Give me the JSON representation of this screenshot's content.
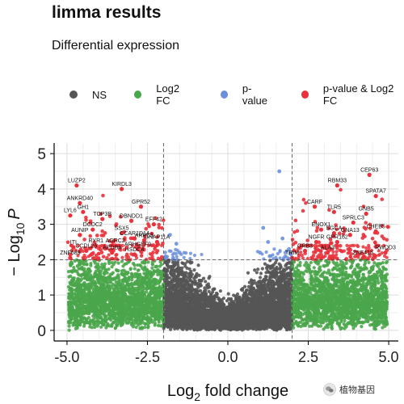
{
  "chart_data": {
    "type": "scatter",
    "title": "limma results",
    "subtitle": "Differential expression",
    "xlabel_main": "Log",
    "xlabel_sub": "2",
    "xlabel_rest": " fold change",
    "ylabel_main": "− Log",
    "ylabel_sub": "10",
    "ylabel_var": "P",
    "xlim": [
      -5.4,
      5.3
    ],
    "ylim": [
      -0.3,
      5.3
    ],
    "x_ticks": [
      -5.0,
      -2.5,
      0.0,
      2.5,
      5.0
    ],
    "x_tick_labels": [
      "-5.0",
      "-2.5",
      "0.0",
      "2.5",
      "5.0"
    ],
    "y_ticks": [
      0,
      1,
      2,
      3,
      4,
      5
    ],
    "y_tick_labels": [
      "0",
      "1",
      "2",
      "3",
      "4",
      "5"
    ],
    "fc_cutoff": [
      -2,
      2
    ],
    "p_cutoff": 2,
    "grid": true,
    "legend_position": "top",
    "legend": [
      {
        "label": "NS",
        "color": "#555555"
      },
      {
        "label": "Log2 FC",
        "color": "#4aa64a"
      },
      {
        "label": "p-value",
        "color": "#6c8fdc"
      },
      {
        "label": "p-value & Log2 FC",
        "color": "#e8313a"
      }
    ],
    "labeled_genes": [
      {
        "gene": "LUZP2",
        "x": -4.7,
        "y": 4.1
      },
      {
        "gene": "KIRDL3",
        "x": -3.3,
        "y": 4.0
      },
      {
        "gene": "ANKRD40",
        "x": -4.6,
        "y": 3.6
      },
      {
        "gene": "GPR52",
        "x": -2.7,
        "y": 3.5
      },
      {
        "gene": "GH1",
        "x": -4.5,
        "y": 3.35
      },
      {
        "gene": "LYL6",
        "x": -4.9,
        "y": 3.25
      },
      {
        "gene": "TOP3B",
        "x": -3.9,
        "y": 3.15
      },
      {
        "gene": "DBNDD1",
        "x": -3.0,
        "y": 3.1
      },
      {
        "gene": "EFF42",
        "x": -2.3,
        "y": 3.0
      },
      {
        "gene": "DCDC2",
        "x": -4.2,
        "y": 2.85
      },
      {
        "gene": "AUNIP",
        "x": -4.6,
        "y": 2.7
      },
      {
        "gene": "SSX5",
        "x": -3.3,
        "y": 2.75
      },
      {
        "gene": "CCAR1D14",
        "x": -2.9,
        "y": 2.6
      },
      {
        "gene": "ARPC5",
        "x": -2.6,
        "y": 2.55
      },
      {
        "gene": "GNAP11A",
        "x": -2.2,
        "y": 2.5
      },
      {
        "gene": "ITI",
        "x": -4.8,
        "y": 2.35
      },
      {
        "gene": "RYR1",
        "x": -4.1,
        "y": 2.4
      },
      {
        "gene": "AGRC2",
        "x": -3.5,
        "y": 2.4
      },
      {
        "gene": "ARHGEF9",
        "x": -2.8,
        "y": 2.3
      },
      {
        "gene": "CCDL25",
        "x": -4.4,
        "y": 2.25
      },
      {
        "gene": "AEDB6",
        "x": -3.6,
        "y": 2.2
      },
      {
        "gene": "HSDC4",
        "x": -2.9,
        "y": 2.15
      },
      {
        "gene": "ZNF689",
        "x": -4.9,
        "y": 2.05
      },
      {
        "gene": "CEP63",
        "x": 4.4,
        "y": 4.4
      },
      {
        "gene": "RBM33",
        "x": 3.4,
        "y": 4.1
      },
      {
        "gene": "SPATA7",
        "x": 4.6,
        "y": 3.8
      },
      {
        "gene": "CARF",
        "x": 2.7,
        "y": 3.5
      },
      {
        "gene": "TLR5",
        "x": 3.3,
        "y": 3.35
      },
      {
        "gene": "GNB5",
        "x": 4.3,
        "y": 3.3
      },
      {
        "gene": "SPRLC3",
        "x": 3.9,
        "y": 3.05
      },
      {
        "gene": "ENOX1",
        "x": 2.9,
        "y": 2.85
      },
      {
        "gene": "SGCA",
        "x": 3.3,
        "y": 2.75
      },
      {
        "gene": "CHEB5",
        "x": 4.6,
        "y": 2.8
      },
      {
        "gene": "GNA13",
        "x": 3.8,
        "y": 2.7
      },
      {
        "gene": "NGFR",
        "x": 2.75,
        "y": 2.5
      },
      {
        "gene": "GPR162",
        "x": 3.4,
        "y": 2.5
      },
      {
        "gene": "GRB3",
        "x": 2.4,
        "y": 2.25
      },
      {
        "gene": "ALA3",
        "x": 3.1,
        "y": 2.2
      },
      {
        "gene": "RWDD3",
        "x": 4.9,
        "y": 2.2
      },
      {
        "gene": "TRIM",
        "x": 2.0,
        "y": 2.05
      },
      {
        "gene": "ZNF415",
        "x": 4.2,
        "y": 2.05
      }
    ]
  },
  "watermark": {
    "text": "植物基因"
  }
}
